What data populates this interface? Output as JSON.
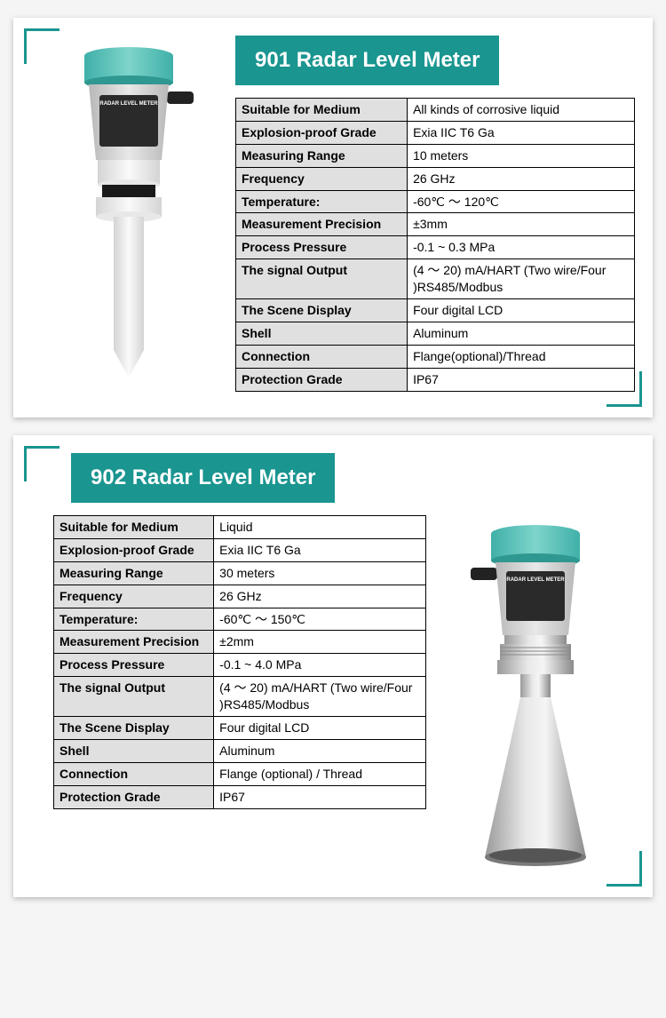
{
  "accent_color": "#1a9590",
  "border_color": "#000000",
  "label_bg": "#e0e0e0",
  "card_bg": "#ffffff",
  "page_bg": "#f5f5f5",
  "products": [
    {
      "title": "901 Radar Level Meter",
      "image_type": "plastic_probe",
      "specs": [
        {
          "label": "Suitable for Medium",
          "value": "All kinds of corrosive liquid"
        },
        {
          "label": "Explosion-proof Grade",
          "value": "Exia IIC T6 Ga"
        },
        {
          "label": "Measuring Range",
          "value": "10 meters"
        },
        {
          "label": "Frequency",
          "value": "26 GHz"
        },
        {
          "label": "Temperature:",
          "value": "-60℃ ～ 120℃"
        },
        {
          "label": "Measurement Precision",
          "value": "±3mm"
        },
        {
          "label": "Process Pressure",
          "value": "-0.1 ~ 0.3 MPa"
        },
        {
          "label": "The signal Output",
          "value": "(4 ～ 20) mA/HART (Two wire/Four )RS485/Modbus"
        },
        {
          "label": "The Scene Display",
          "value": "Four digital LCD"
        },
        {
          "label": "Shell",
          "value": "Aluminum"
        },
        {
          "label": "Connection",
          "value": "Flange(optional)/Thread"
        },
        {
          "label": "Protection Grade",
          "value": "IP67"
        }
      ]
    },
    {
      "title": "902 Radar Level Meter",
      "image_type": "steel_horn",
      "specs": [
        {
          "label": "Suitable for Medium",
          "value": "Liquid"
        },
        {
          "label": "Explosion-proof Grade",
          "value": "Exia IIC T6 Ga"
        },
        {
          "label": "Measuring Range",
          "value": "30 meters"
        },
        {
          "label": "Frequency",
          "value": "26 GHz"
        },
        {
          "label": "Temperature:",
          "value": "-60℃ ～ 150℃"
        },
        {
          "label": "Measurement Precision",
          "value": "±2mm"
        },
        {
          "label": "Process Pressure",
          "value": "-0.1 ~ 4.0 MPa"
        },
        {
          "label": "The signal Output",
          "value": "(4 ～ 20) mA/HART (Two wire/Four )RS485/Modbus"
        },
        {
          "label": "The Scene Display",
          "value": "Four digital LCD"
        },
        {
          "label": "Shell",
          "value": "Aluminum"
        },
        {
          "label": "Connection",
          "value": "Flange (optional) / Thread"
        },
        {
          "label": "Protection Grade",
          "value": "IP67"
        }
      ]
    }
  ]
}
